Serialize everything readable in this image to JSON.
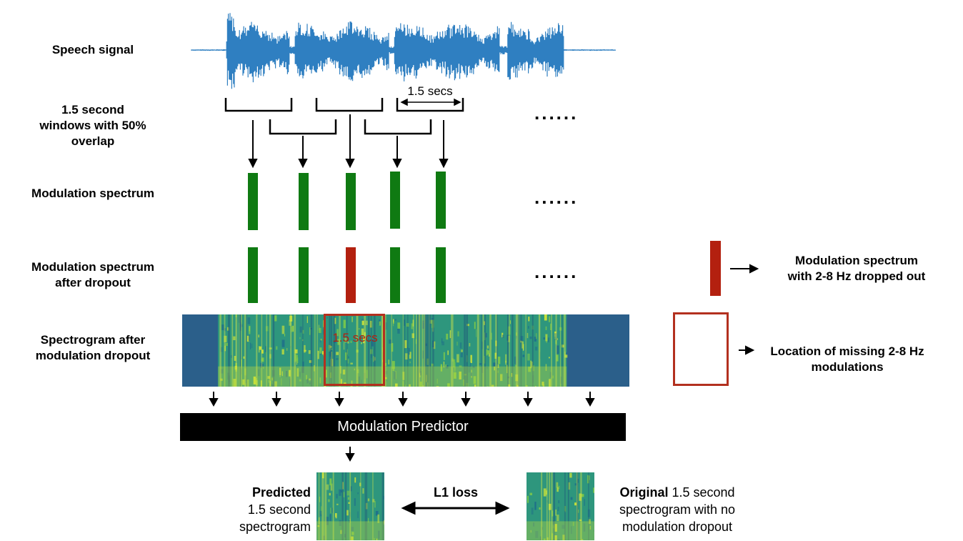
{
  "labels": {
    "speech_signal": "Speech signal",
    "windows_line1": "1.5 second",
    "windows_line2": "windows with 50%",
    "windows_line3": "overlap",
    "modulation_spectrum": "Modulation spectrum",
    "after_dropout_line1": "Modulation spectrum",
    "after_dropout_line2": "after dropout",
    "spectrogram_line1": "Spectrogram after",
    "spectrogram_line2": "modulation dropout"
  },
  "annotations": {
    "window_duration": "1.5 secs",
    "box_duration": "1.5 secs",
    "ellipsis": "......"
  },
  "legend": {
    "dropped_line1": "Modulation spectrum",
    "dropped_line2": "with 2-8 Hz dropped out",
    "missing_line1": "Location of missing 2-8 Hz",
    "missing_line2": "modulations"
  },
  "predictor": {
    "label": "Modulation Predictor"
  },
  "bottom": {
    "predicted_bold": "Predicted",
    "predicted_line2": "1.5 second",
    "predicted_line3": "spectrogram",
    "loss": "L1 loss",
    "original_bold": "Original",
    "original_rest": " 1.5 second",
    "original_line2": "spectrogram with no",
    "original_line3": "modulation dropout"
  },
  "colors": {
    "waveform": "#2f7fc1",
    "green_bar": "#0f7a12",
    "red_bar": "#b3200f",
    "highlight": "#b3301f",
    "spectrogram_dark": "#2b5f8a",
    "spectrogram_mid": "#2fa07a",
    "spectrogram_bright": "#c8e03a"
  },
  "dropout_bar_index": 2
}
